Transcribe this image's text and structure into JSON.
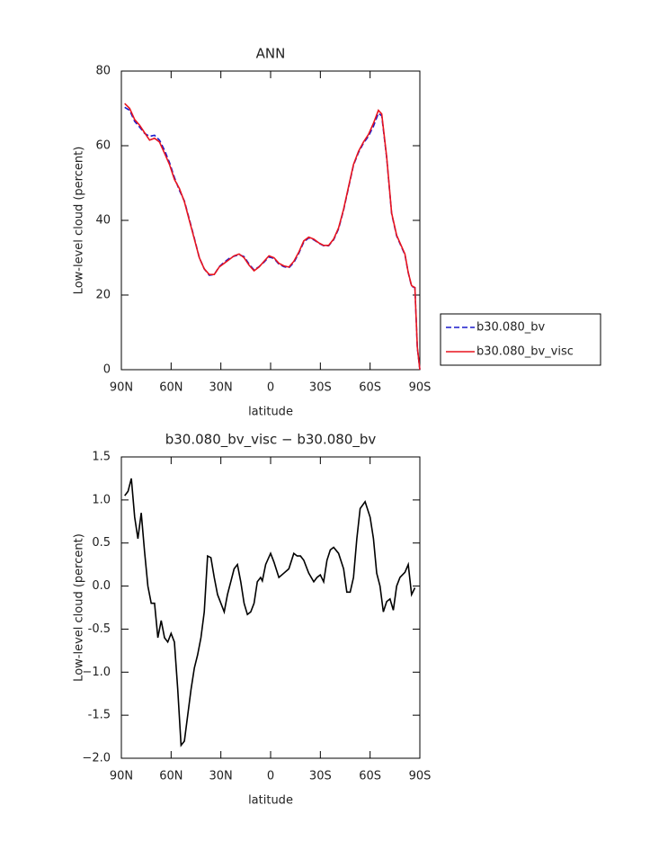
{
  "chart_data": [
    {
      "type": "line",
      "title": "ANN",
      "x_label": "latitude",
      "y_label": "Low-level cloud (percent)",
      "x": [
        88,
        85,
        82,
        79,
        76,
        73,
        70,
        67,
        64,
        61,
        58,
        55,
        52,
        49,
        46,
        43,
        40,
        37,
        34,
        31,
        28,
        25,
        22,
        19,
        16,
        13,
        10,
        7,
        4,
        1,
        -2,
        -5,
        -8,
        -11,
        -14,
        -17,
        -20,
        -23,
        -26,
        -29,
        -32,
        -35,
        -38,
        -41,
        -44,
        -47,
        -50,
        -53,
        -56,
        -59,
        -62,
        -65,
        -67,
        -70,
        -73,
        -76,
        -79,
        -81,
        -83,
        -85,
        -87,
        -88.5,
        -90
      ],
      "series": [
        {
          "name": "b30.080_bv",
          "color": "#1a1acc",
          "line_style": "dashed",
          "values": [
            70.3,
            69.5,
            66.5,
            65,
            63.3,
            62.5,
            62.8,
            61.5,
            58.8,
            55.5,
            51.5,
            48,
            45.2,
            40.3,
            35.2,
            30,
            27,
            25.3,
            25.5,
            27.6,
            28.8,
            29.8,
            30.4,
            30.8,
            30.3,
            28.3,
            26.7,
            27.6,
            28.8,
            30.2,
            29.8,
            28.3,
            27.6,
            27.3,
            28.7,
            31.2,
            34.2,
            35.3,
            34.8,
            33.9,
            33.2,
            33.2,
            34.8,
            37.7,
            42.8,
            48.8,
            54.8,
            58.2,
            60.7,
            62.5,
            65.2,
            68.7,
            68,
            56.8,
            41.8,
            35.8,
            32.8,
            30.8,
            26,
            22.3,
            22,
            5.8,
            0
          ]
        },
        {
          "name": "b30.080_bv_visc",
          "color": "#e8141e",
          "line_style": "solid",
          "values": [
            71.3,
            70,
            67,
            65.5,
            63.5,
            61.5,
            62,
            61,
            58,
            55,
            51,
            48.5,
            45,
            40,
            35,
            30,
            27,
            25.5,
            25.5,
            27.5,
            28.5,
            29.5,
            30.5,
            31,
            30,
            28,
            26.5,
            27.5,
            29,
            30.5,
            30,
            28.5,
            27.8,
            27.5,
            29,
            31.5,
            34.5,
            35.5,
            35,
            34,
            33.3,
            33.3,
            35,
            38,
            43,
            49,
            55,
            58.5,
            61,
            63,
            66,
            69.5,
            68.5,
            57,
            42,
            36,
            33,
            31,
            26,
            22.5,
            22,
            6,
            0
          ]
        }
      ],
      "xlim": [
        90,
        -90
      ],
      "xticks": [
        {
          "value": 90,
          "label": "90N"
        },
        {
          "value": 60,
          "label": "60N"
        },
        {
          "value": 30,
          "label": "30N"
        },
        0,
        {
          "value": -30,
          "label": "30S"
        },
        {
          "value": -60,
          "label": "60S"
        },
        {
          "value": -90,
          "label": "90S"
        }
      ],
      "ylim": [
        0,
        80
      ],
      "yticks": [
        0,
        20,
        40,
        60,
        80
      ],
      "legend": "right"
    },
    {
      "type": "line",
      "title": "b30.080_bv_visc − b30.080_bv",
      "x_label": "latitude",
      "y_label": "Low-level cloud (percent)",
      "x": [
        88,
        86,
        84,
        82,
        80,
        78,
        76,
        74,
        72,
        70,
        68,
        66,
        64,
        62,
        60,
        58,
        56,
        54,
        52,
        50,
        48,
        46,
        44,
        42,
        40,
        38,
        36,
        34,
        32,
        30,
        28,
        26,
        24,
        22,
        20,
        18,
        16,
        14,
        12,
        10,
        8,
        6,
        5,
        3,
        0,
        -2,
        -5,
        -8,
        -11,
        -14,
        -16,
        -18,
        -20,
        -23,
        -26,
        -28,
        -30,
        -32,
        -34,
        -36,
        -38,
        -41,
        -44,
        -46,
        -48,
        -50,
        -52,
        -54,
        -57,
        -60,
        -62,
        -64,
        -66,
        -68,
        -70,
        -72,
        -74,
        -76,
        -78,
        -81,
        -83,
        -85,
        -87
      ],
      "values": [
        1.05,
        1.1,
        1.25,
        0.8,
        0.55,
        0.85,
        0.4,
        0,
        -0.2,
        -0.2,
        -0.6,
        -0.4,
        -0.6,
        -0.65,
        -0.55,
        -0.65,
        -1.2,
        -1.85,
        -1.8,
        -1.5,
        -1.2,
        -0.95,
        -0.8,
        -0.6,
        -0.3,
        0.35,
        0.33,
        0.1,
        -0.1,
        -0.2,
        -0.3,
        -0.1,
        0.05,
        0.2,
        0.25,
        0.05,
        -0.2,
        -0.33,
        -0.3,
        -0.2,
        0.05,
        0.1,
        0.06,
        0.25,
        0.38,
        0.28,
        0.1,
        0.15,
        0.2,
        0.38,
        0.35,
        0.35,
        0.3,
        0.15,
        0.05,
        0.1,
        0.13,
        0.05,
        0.3,
        0.42,
        0.45,
        0.38,
        0.2,
        -0.07,
        -0.07,
        0.1,
        0.55,
        0.9,
        0.98,
        0.8,
        0.55,
        0.15,
        0,
        -0.3,
        -0.18,
        -0.15,
        -0.28,
        0,
        0.1,
        0.16,
        0.25,
        -0.1,
        -0.02
      ],
      "color": "#000000",
      "xlim": [
        90,
        -90
      ],
      "xticks": [
        {
          "value": 90,
          "label": "90N"
        },
        {
          "value": 60,
          "label": "60N"
        },
        {
          "value": 30,
          "label": "30N"
        },
        0,
        {
          "value": -30,
          "label": "30S"
        },
        {
          "value": -60,
          "label": "60S"
        },
        {
          "value": -90,
          "label": "90S"
        }
      ],
      "ylim": [
        -2,
        1.5
      ],
      "yticks": [
        {
          "value": -2,
          "label": "−2.0"
        },
        -1.5,
        {
          "value": -1,
          "label": "−1.0"
        },
        -0.5,
        {
          "value": 0,
          "label": "0.0"
        },
        0.5,
        {
          "value": 1,
          "label": "1.0"
        },
        1.5
      ]
    }
  ]
}
